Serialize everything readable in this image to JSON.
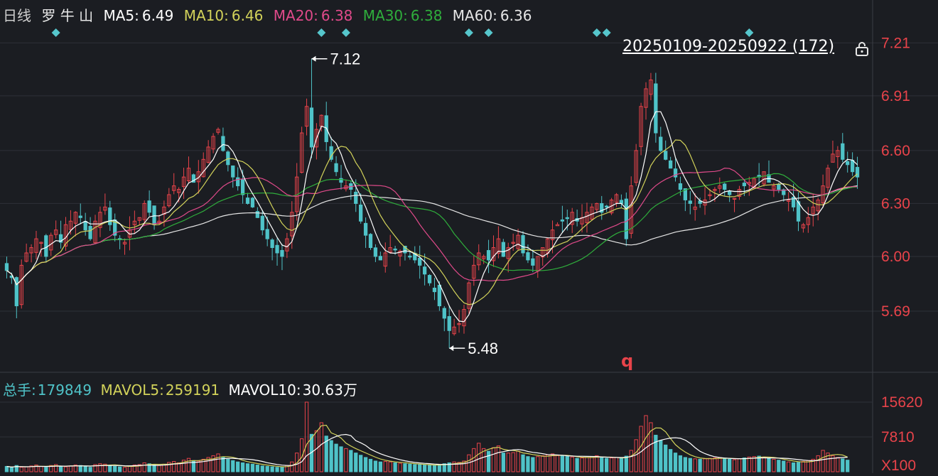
{
  "legend": {
    "period": "日线",
    "name": "罗 牛 山",
    "ma5_label": "MA5:",
    "ma5_value": "6.49",
    "ma10_label": "MA10:",
    "ma10_value": "6.46",
    "ma20_label": "MA20:",
    "ma20_value": "6.38",
    "ma30_label": "MA30:",
    "ma30_value": "6.38",
    "ma60_label": "MA60:",
    "ma60_value": "6.36"
  },
  "range_label": "20250109-20250922 (172)",
  "high_label": "7.12",
  "low_label": "5.48",
  "marker_label": "q",
  "volume_legend": {
    "total_label": "总手:",
    "total_value": "179849",
    "mavol5_label": "MAVOL5:",
    "mavol5_value": "259191",
    "mavol10_label": "MAVOL10:",
    "mavol10_value": "30.63万"
  },
  "colors": {
    "up": "#e8434a",
    "down": "#4fc3c8",
    "background": "#1b1d22",
    "ma5": "#ffffff",
    "ma10": "#d2d25a",
    "ma20": "#e04a8a",
    "ma30": "#2fae3c",
    "ma60": "#e6e6e6",
    "signal": "#56c6cc",
    "grid": "#2e3138",
    "axis_text": "#e8434a"
  },
  "chart_data": {
    "type": "candlestick",
    "y_axis_ticks": [
      "7.21",
      "6.91",
      "6.60",
      "6.30",
      "6.00",
      "5.69"
    ],
    "ylim": [
      5.4,
      7.3
    ],
    "volume_axis_ticks": [
      "15620",
      "7810",
      "X100"
    ],
    "volume_unit": "X100",
    "bars": 172,
    "highest": 7.12,
    "lowest": 5.48,
    "close_series": [
      5.92,
      5.88,
      5.72,
      5.95,
      6.02,
      6.05,
      6.1,
      6.08,
      6.0,
      6.12,
      6.15,
      6.08,
      6.18,
      6.2,
      6.25,
      6.22,
      6.15,
      6.1,
      6.2,
      6.25,
      6.28,
      6.18,
      6.12,
      6.1,
      6.08,
      6.15,
      6.2,
      6.22,
      6.3,
      6.25,
      6.18,
      6.2,
      6.28,
      6.35,
      6.4,
      6.38,
      6.45,
      6.5,
      6.42,
      6.48,
      6.55,
      6.62,
      6.68,
      6.72,
      6.6,
      6.52,
      6.45,
      6.4,
      6.35,
      6.3,
      6.28,
      6.22,
      6.15,
      6.1,
      6.05,
      6.02,
      6.0,
      6.1,
      6.25,
      6.45,
      6.7,
      6.85,
      6.62,
      6.72,
      6.8,
      6.65,
      6.55,
      6.48,
      6.42,
      6.4,
      6.38,
      6.3,
      6.2,
      6.12,
      6.05,
      6.0,
      5.98,
      6.02,
      6.05,
      6.04,
      6.03,
      6.02,
      6.0,
      5.98,
      5.95,
      5.9,
      5.85,
      5.8,
      5.72,
      5.65,
      5.58,
      5.6,
      5.62,
      5.7,
      5.85,
      5.95,
      6.02,
      6.0,
      5.98,
      6.05,
      6.1,
      6.0,
      6.05,
      6.08,
      6.12,
      6.02,
      5.98,
      5.95,
      6.0,
      6.05,
      6.1,
      6.15,
      6.18,
      6.2,
      6.22,
      6.25,
      6.2,
      6.22,
      6.25,
      6.28,
      6.3,
      6.25,
      6.28,
      6.32,
      6.35,
      6.3,
      6.1,
      6.4,
      6.6,
      6.85,
      6.95,
      7.0,
      6.7,
      6.6,
      6.55,
      6.5,
      6.45,
      6.38,
      6.32,
      6.3,
      6.28,
      6.3,
      6.32,
      6.35,
      6.38,
      6.4,
      6.38,
      6.35,
      6.33,
      6.38,
      6.4,
      6.42,
      6.44,
      6.45,
      6.48,
      6.42,
      6.4,
      6.38,
      6.35,
      6.32,
      6.28,
      6.2,
      6.18,
      6.22,
      6.28,
      6.32,
      6.4,
      6.5,
      6.58,
      6.6,
      6.55,
      6.52,
      6.48,
      6.45
    ],
    "volume_series_x100": [
      1200,
      900,
      1400,
      1000,
      1100,
      1300,
      1500,
      1200,
      1000,
      1400,
      1600,
      1200,
      1100,
      1300,
      1500,
      1400,
      1200,
      1000,
      1600,
      1800,
      1700,
      1400,
      1200,
      1100,
      1000,
      1300,
      1500,
      1600,
      2000,
      1800,
      1500,
      1400,
      1700,
      2100,
      2300,
      2000,
      2600,
      3000,
      2500,
      2400,
      2800,
      3200,
      3600,
      4000,
      3300,
      2800,
      2500,
      2200,
      2000,
      1800,
      1700,
      1500,
      1300,
      1200,
      1100,
      1000,
      1000,
      1400,
      2200,
      4200,
      7400,
      15620,
      8400,
      9200,
      11000,
      8000,
      7000,
      6200,
      5600,
      5200,
      4800,
      4200,
      3700,
      3200,
      2800,
      2400,
      2200,
      2300,
      2200,
      2000,
      1900,
      1800,
      1700,
      1600,
      1600,
      1500,
      1500,
      1400,
      1600,
      1800,
      2000,
      2200,
      2100,
      2400,
      3800,
      5200,
      6400,
      5200,
      4600,
      5400,
      5800,
      4200,
      4200,
      4300,
      4600,
      3800,
      3400,
      3200,
      3400,
      3600,
      3800,
      4000,
      3600,
      3500,
      3400,
      3300,
      3000,
      3100,
      3200,
      3400,
      3600,
      3200,
      3000,
      3100,
      3200,
      3000,
      3500,
      4800,
      7200,
      10200,
      12600,
      11000,
      8200,
      7000,
      6000,
      5000,
      4200,
      3600,
      3200,
      3000,
      2900,
      2800,
      2900,
      3000,
      3100,
      3200,
      3000,
      2800,
      2700,
      2900,
      3100,
      3300,
      3400,
      3500,
      3300,
      3000,
      2800,
      2600,
      2400,
      2200,
      2000,
      2100,
      2300,
      2500,
      2800,
      3600,
      4800,
      4200,
      3600,
      3200,
      2900,
      2600
    ]
  }
}
